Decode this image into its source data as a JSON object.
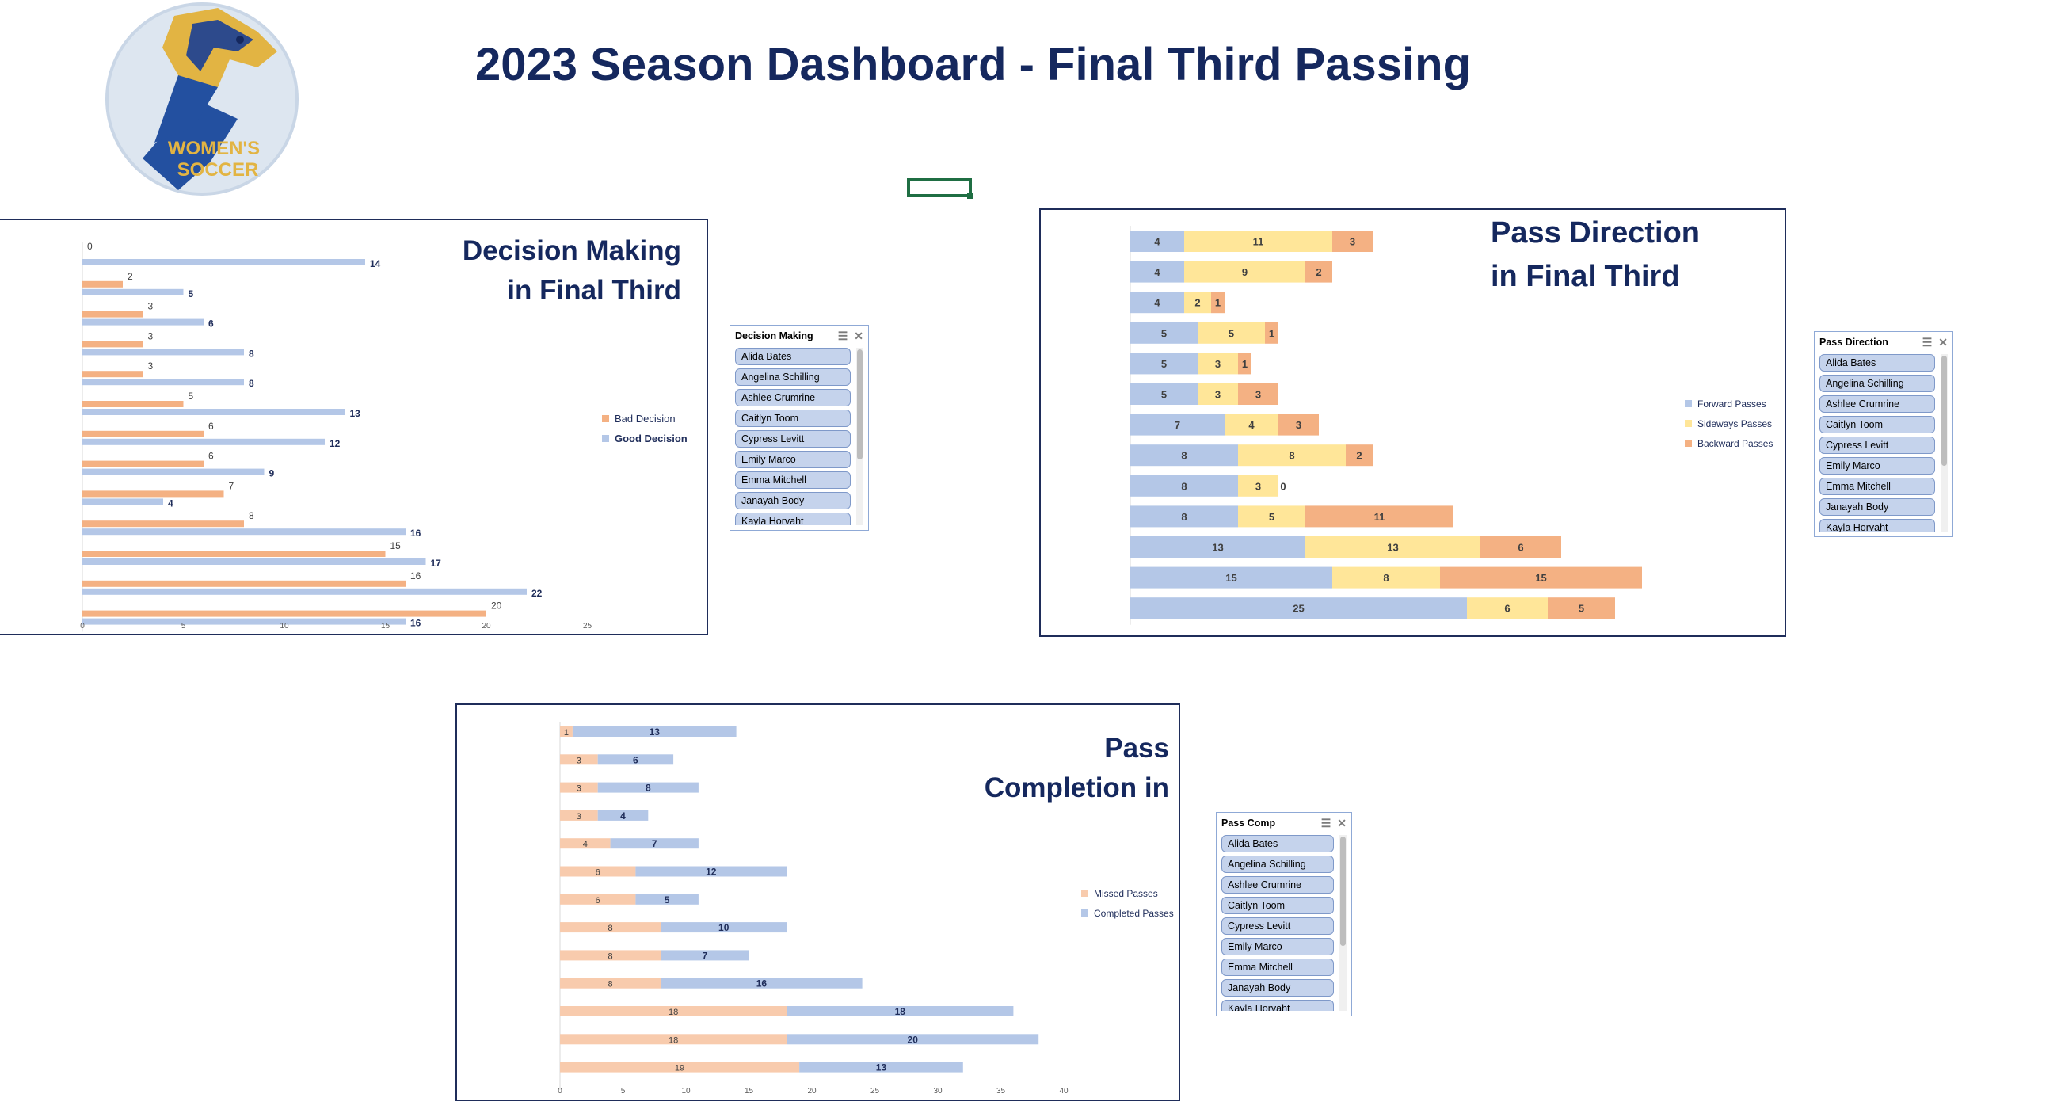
{
  "page": {
    "title": "2023 Season Dashboard - Final Third Passing",
    "logo_text": [
      "WOMEN'S",
      "SOCCER"
    ]
  },
  "colors": {
    "title_navy": "#15285e",
    "good_blue": "#b4c7e7",
    "bad_orange": "#f4b183",
    "forward_blue": "#b4c7e7",
    "sideways_yellow": "#ffe699",
    "backward_orange": "#f4b183",
    "missed_peach": "#f8cbad",
    "slicer_item": "#c5d3ec"
  },
  "decision_chart": {
    "title_lines": [
      "Decision Making",
      "in Final Third"
    ],
    "legend": [
      "Bad Decision",
      "Good Decision"
    ]
  },
  "direction_chart": {
    "title_lines": [
      "Pass Direction",
      "in Final Third"
    ],
    "legend": [
      "Forward Passes",
      "Sideways Passes",
      "Backward Passes"
    ]
  },
  "completion_chart": {
    "title_lines": [
      "Pass",
      "Completion in"
    ],
    "legend": [
      "Missed Passes",
      "Completed Passes"
    ]
  },
  "chart_data": [
    {
      "type": "bar",
      "orientation": "horizontal",
      "title": "Decision Making in Final Third",
      "series": [
        {
          "name": "Bad Decision",
          "values": [
            0,
            2,
            3,
            3,
            3,
            5,
            6,
            6,
            7,
            8,
            15,
            16,
            20
          ]
        },
        {
          "name": "Good Decision",
          "values": [
            14,
            5,
            6,
            8,
            8,
            13,
            12,
            9,
            4,
            16,
            17,
            22,
            16
          ]
        }
      ],
      "xlim": [
        0,
        25
      ],
      "xticks": [
        0,
        5,
        10,
        15,
        20,
        25
      ],
      "legend": "right"
    },
    {
      "type": "bar",
      "orientation": "horizontal",
      "stacked": true,
      "title": "Pass Direction in Final Third",
      "series": [
        {
          "name": "Forward Passes",
          "values": [
            4,
            4,
            4,
            5,
            5,
            5,
            7,
            8,
            8,
            8,
            13,
            15,
            25
          ]
        },
        {
          "name": "Sideways Passes",
          "values": [
            11,
            9,
            2,
            5,
            3,
            3,
            4,
            8,
            3,
            5,
            13,
            8,
            6
          ]
        },
        {
          "name": "Backward Passes",
          "values": [
            3,
            2,
            1,
            1,
            1,
            3,
            3,
            2,
            0,
            11,
            6,
            15,
            5
          ]
        }
      ],
      "legend": "right"
    },
    {
      "type": "bar",
      "orientation": "horizontal",
      "stacked": true,
      "title": "Pass Completion in",
      "series": [
        {
          "name": "Missed Passes",
          "values": [
            1,
            3,
            3,
            3,
            4,
            6,
            6,
            8,
            8,
            8,
            18,
            18,
            19
          ]
        },
        {
          "name": "Completed Passes",
          "values": [
            13,
            6,
            8,
            4,
            7,
            12,
            5,
            10,
            7,
            16,
            18,
            20,
            13
          ]
        }
      ],
      "xlim": [
        0,
        40
      ],
      "xticks": [
        0,
        5,
        10,
        15,
        20,
        25,
        30,
        35,
        40
      ],
      "legend": "right"
    }
  ],
  "slicers": [
    {
      "title": "Decision Making",
      "items": [
        "Alida Bates",
        "Angelina Schilling",
        "Ashlee Crumrine",
        "Caitlyn Toom",
        "Cypress Levitt",
        "Emily Marco",
        "Emma Mitchell",
        "Janayah  Body",
        "Kayla Horvaht"
      ]
    },
    {
      "title": "Pass Direction",
      "items": [
        "Alida Bates",
        "Angelina Schilling",
        "Ashlee Crumrine",
        "Caitlyn Toom",
        "Cypress Levitt",
        "Emily Marco",
        "Emma Mitchell",
        "Janayah  Body",
        "Kayla Horvaht"
      ]
    },
    {
      "title": "Pass Comp",
      "items": [
        "Alida Bates",
        "Angelina Schilling",
        "Ashlee Crumrine",
        "Caitlyn Toom",
        "Cypress Levitt",
        "Emily Marco",
        "Emma Mitchell",
        "Janayah  Body",
        "Kayla Horvaht"
      ]
    }
  ]
}
